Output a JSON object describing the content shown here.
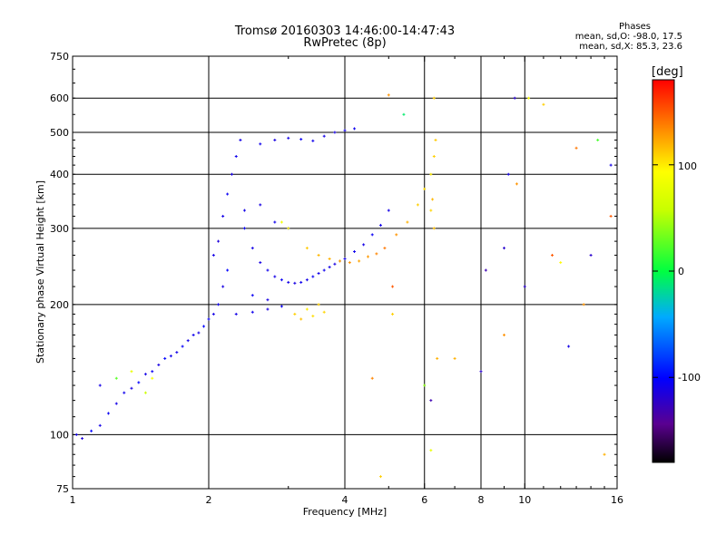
{
  "title": "Tromsø 20160303 14:46:00-14:47:43",
  "subtitle": "RwPretec (8p)",
  "phases": {
    "header": "Phases",
    "o_mode": "mean, sd,O: -98.0, 17.5",
    "x_mode": "mean, sd,X: 85.3, 23.6"
  },
  "colorbar": {
    "title": "[deg]",
    "ticks": [
      "100",
      "0",
      "-100"
    ],
    "tick_values": [
      100,
      0,
      -100
    ],
    "range": [
      -180,
      180
    ]
  },
  "chart_data": {
    "type": "scatter",
    "xlabel": "Frequency [MHz]",
    "ylabel": "Stationary phase Virtual Height [km]",
    "xscale": "log",
    "yscale": "log",
    "xlim": [
      1,
      16
    ],
    "ylim": [
      75,
      750
    ],
    "xticks": [
      1,
      2,
      4,
      6,
      8,
      10,
      16
    ],
    "xtick_labels": [
      "1",
      "2",
      "4",
      "6",
      "8",
      "10",
      "16"
    ],
    "yticks": [
      75,
      100,
      200,
      300,
      400,
      500,
      600,
      750
    ],
    "ytick_labels": [
      "75",
      "100",
      "200",
      "300",
      "400",
      "500",
      "600",
      "750"
    ],
    "grid": true,
    "series": [
      {
        "points": [
          [
            1.02,
            100,
            -110
          ],
          [
            1.05,
            98,
            -115
          ],
          [
            1.1,
            102,
            -100
          ],
          [
            1.15,
            105,
            -110
          ],
          [
            1.2,
            112,
            -105
          ],
          [
            1.25,
            118,
            -110
          ],
          [
            1.3,
            125,
            -108
          ],
          [
            1.35,
            128,
            -112
          ],
          [
            1.4,
            132,
            -100
          ],
          [
            1.45,
            138,
            -110
          ],
          [
            1.5,
            140,
            -105
          ],
          [
            1.55,
            145,
            -112
          ],
          [
            1.6,
            150,
            -100
          ],
          [
            1.65,
            152,
            -108
          ],
          [
            1.7,
            155,
            -110
          ],
          [
            1.75,
            160,
            -103
          ],
          [
            1.8,
            165,
            -110
          ],
          [
            1.85,
            170,
            -108
          ],
          [
            1.9,
            172,
            -112
          ],
          [
            1.95,
            178,
            -100
          ],
          [
            2.0,
            185,
            -105
          ],
          [
            2.05,
            190,
            -110
          ],
          [
            2.1,
            200,
            -108
          ],
          [
            2.15,
            220,
            -112
          ],
          [
            2.2,
            240,
            -100
          ],
          [
            2.05,
            260,
            -110
          ],
          [
            2.1,
            280,
            -115
          ],
          [
            2.15,
            320,
            -110
          ],
          [
            2.2,
            360,
            -105
          ],
          [
            2.25,
            400,
            -112
          ],
          [
            2.3,
            440,
            -108
          ],
          [
            2.35,
            480,
            -110
          ],
          [
            2.4,
            300,
            -105
          ],
          [
            2.5,
            270,
            -110
          ],
          [
            2.6,
            250,
            -112
          ],
          [
            2.7,
            240,
            -108
          ],
          [
            2.8,
            232,
            -110
          ],
          [
            2.9,
            228,
            -105
          ],
          [
            3.0,
            225,
            -110
          ],
          [
            3.1,
            224,
            -112
          ],
          [
            3.2,
            225,
            -108
          ],
          [
            3.3,
            228,
            -110
          ],
          [
            3.4,
            232,
            -105
          ],
          [
            3.5,
            236,
            -110
          ],
          [
            3.6,
            240,
            -108
          ],
          [
            3.7,
            244,
            -110
          ],
          [
            3.8,
            248,
            -112
          ],
          [
            3.9,
            252,
            -105
          ],
          [
            4.0,
            255,
            -110
          ],
          [
            4.2,
            265,
            -108
          ],
          [
            4.4,
            275,
            -110
          ],
          [
            4.6,
            290,
            -105
          ],
          [
            4.8,
            305,
            -108
          ],
          [
            5.0,
            330,
            -110
          ],
          [
            2.6,
            470,
            -108
          ],
          [
            2.8,
            480,
            -112
          ],
          [
            3.0,
            485,
            -110
          ],
          [
            3.2,
            482,
            -105
          ],
          [
            3.4,
            478,
            -108
          ],
          [
            3.6,
            490,
            -110
          ],
          [
            3.8,
            500,
            -112
          ],
          [
            4.0,
            505,
            -110
          ],
          [
            4.2,
            510,
            -108
          ],
          [
            2.3,
            190,
            -110
          ],
          [
            2.5,
            192,
            -108
          ],
          [
            2.7,
            195,
            -112
          ],
          [
            2.9,
            198,
            -105
          ],
          [
            2.4,
            330,
            -110
          ],
          [
            2.6,
            340,
            -112
          ],
          [
            2.8,
            310,
            -108
          ],
          [
            3.0,
            300,
            -110
          ],
          [
            2.5,
            210,
            -105
          ],
          [
            2.7,
            205,
            -112
          ],
          [
            1.15,
            130,
            -110
          ],
          [
            1.25,
            135,
            25
          ],
          [
            1.35,
            140,
            80
          ],
          [
            1.45,
            125,
            60
          ]
        ]
      },
      {
        "points": [
          [
            3.1,
            190,
            110
          ],
          [
            3.2,
            185,
            115
          ],
          [
            3.3,
            195,
            100
          ],
          [
            3.4,
            188,
            105
          ],
          [
            3.5,
            200,
            110
          ],
          [
            3.6,
            192,
            108
          ],
          [
            3.3,
            270,
            112
          ],
          [
            3.5,
            260,
            118
          ],
          [
            3.7,
            255,
            120
          ],
          [
            3.9,
            252,
            125
          ],
          [
            4.1,
            250,
            130
          ],
          [
            4.3,
            252,
            125
          ],
          [
            4.5,
            258,
            128
          ],
          [
            4.7,
            262,
            135
          ],
          [
            4.9,
            270,
            140
          ],
          [
            5.2,
            290,
            130
          ],
          [
            5.5,
            310,
            120
          ],
          [
            5.8,
            340,
            110
          ],
          [
            6.0,
            370,
            105
          ],
          [
            6.2,
            400,
            100
          ],
          [
            6.3,
            440,
            110
          ],
          [
            6.35,
            480,
            112
          ],
          [
            6.3,
            300,
            115
          ],
          [
            6.25,
            350,
            118
          ],
          [
            6.2,
            330,
            108
          ],
          [
            3.0,
            300,
            95
          ],
          [
            2.9,
            310,
            85
          ],
          [
            1.5,
            135,
            90
          ]
        ]
      },
      {
        "points": [
          [
            5.0,
            610,
            130
          ],
          [
            6.3,
            600,
            110
          ],
          [
            6.4,
            150,
            120
          ],
          [
            6.0,
            130,
            40
          ],
          [
            5.4,
            550,
            -10
          ],
          [
            5.1,
            220,
            150
          ],
          [
            6.2,
            92,
            80
          ],
          [
            4.8,
            80,
            110
          ],
          [
            9.5,
            600,
            -120
          ],
          [
            10.2,
            600,
            90
          ],
          [
            11.0,
            580,
            110
          ],
          [
            13.0,
            460,
            140
          ],
          [
            14.5,
            480,
            20
          ],
          [
            15.5,
            420,
            -110
          ],
          [
            15.5,
            320,
            150
          ],
          [
            14.0,
            260,
            -120
          ],
          [
            13.5,
            200,
            130
          ],
          [
            12.5,
            160,
            -110
          ],
          [
            15.0,
            90,
            120
          ],
          [
            12.0,
            250,
            95
          ],
          [
            11.5,
            260,
            150
          ],
          [
            10.0,
            220,
            -120
          ],
          [
            9.2,
            400,
            -110
          ],
          [
            9.6,
            380,
            130
          ],
          [
            9.0,
            270,
            -120
          ],
          [
            8.2,
            240,
            -130
          ],
          [
            9.0,
            170,
            130
          ],
          [
            8.0,
            140,
            -120
          ],
          [
            6.2,
            120,
            -130
          ],
          [
            5.1,
            190,
            110
          ],
          [
            7.0,
            150,
            120
          ],
          [
            4.6,
            135,
            135
          ]
        ]
      }
    ]
  }
}
